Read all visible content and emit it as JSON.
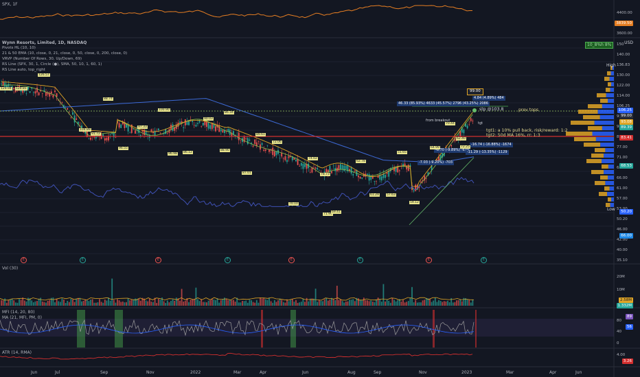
{
  "top_pane": {
    "title": "SPX, 1F",
    "axis": [
      "4400.00",
      "4000.00",
      "3600.00"
    ],
    "price_tag": "3839.50"
  },
  "main": {
    "title": "Wynn Resorts, Limited, 1D, NASDAQ",
    "currency": "USD",
    "indicators": [
      "Pivots HL (10, 10)",
      "21 & 50 EMA (10, close, 0, 21, close, 0, 50, close, 0, 200, close, 0)",
      "VRVP (Number Of Rows, 30, Up/Down, 69)",
      "RS Line (SPX, 30, 1, Circle (●), SMA, 50, 10, 1, 60, 1)",
      "RS Line auto, top_right"
    ],
    "badge": "10_8%h 8%",
    "axis": [
      "150",
      "140.00",
      "136.83",
      "130.00",
      "122.00",
      "114.00",
      "106.25",
      "99.00",
      "93.08",
      "83.41",
      "77.00",
      "71.00",
      "68.53",
      "66.00",
      "61.00",
      "57.00",
      "53.00",
      "50.20",
      "46.00",
      "42.00",
      "40.00",
      "35.10"
    ],
    "high_label": "High",
    "low_label": "Low",
    "price_tags": [
      {
        "text": "106.25",
        "color": "#2962ff"
      },
      {
        "text": "99.00",
        "color": "#2a2e39"
      },
      {
        "text": "93.08",
        "color": "#e0a526"
      },
      {
        "text": "89.39",
        "color": "#26a69a"
      },
      {
        "text": "83.41",
        "color": "#d32f2f"
      },
      {
        "text": "68.53",
        "color": "#26a69a"
      },
      {
        "text": "66.00",
        "color": "#1e88e5"
      },
      {
        "text": "50.20",
        "color": "#2962ff"
      }
    ],
    "annotations": {
      "prev_tops": "prev tops",
      "tgt1": "tgt1: a 10% pull back, risk/reward: 1:2",
      "tgt2": "tgt2: 50d MA 16%, rr: 1:3",
      "stp": "stp @103.8",
      "from_breakout": "from breakout",
      "box_99": "99.00",
      "measure_top": "4.84 (4.89%) 484",
      "measure_main": "46.33 (85.93%) 4633 (45.57%) 2796 (43.25%) 2086",
      "measure_neg1": "-7.03 (-9.20%) -703",
      "measure_neg2": "-6.70 (-9.89%) -670",
      "measure_neg3": "-16.74 (-16.88%) -1674",
      "measure_neg4": "-11.29 (-13.35%) -1129",
      "pivot_small": "tgt"
    },
    "pivots": [
      "129.94",
      "124.81",
      "126.57",
      "104.89",
      "91.72",
      "88.74",
      "96.55",
      "97.33",
      "100.90",
      "96.98",
      "86.12",
      "90.03",
      "88.90",
      "86.34",
      "87.01",
      "89.61",
      "72.06",
      "70.10",
      "74.02",
      "78.73",
      "71.99",
      "69.41",
      "62.78",
      "61.29",
      "57.63",
      "51.65",
      "59.12",
      "64.99",
      "70.44",
      "62.40",
      "72.25"
    ]
  },
  "vol_pane": {
    "title": "Vol (30)",
    "axis": [
      "20M",
      "10M"
    ],
    "tags": [
      {
        "text": "2.58M",
        "color": "#e0a526"
      },
      {
        "text": "1.332M",
        "color": "#26a69a"
      }
    ]
  },
  "mfi_pane": {
    "title": "MFI (14, 20, 80)",
    "sub": "MA (21, MFI, PM, 0)",
    "axis": [
      "80",
      "40",
      "0"
    ],
    "tags": [
      {
        "text": "89",
        "color": "#7e57c2"
      },
      {
        "text": "56",
        "color": "#2962ff"
      }
    ]
  },
  "atr_pane": {
    "title": "ATR (14, RMA)",
    "axis": [
      "4.00",
      "3.26"
    ],
    "tag": {
      "text": "3.26",
      "color": "#d32f2f"
    }
  },
  "x_axis": [
    "Jun",
    "Jul",
    "Sep",
    "Nov",
    "2022",
    "Mar",
    "Apr",
    "Jun",
    "Aug",
    "Sep",
    "Nov",
    "2023",
    "Mar",
    "Apr",
    "Jun"
  ],
  "earnings": [
    "E",
    "E",
    "E",
    "E",
    "E",
    "E",
    "E",
    "E"
  ],
  "colors": {
    "up": "#26a69a",
    "down": "#ef5350",
    "ema21": "#2962ff",
    "ema50": "#e0a526",
    "rs": "#3f51b5",
    "spx": "#e67e22"
  }
}
